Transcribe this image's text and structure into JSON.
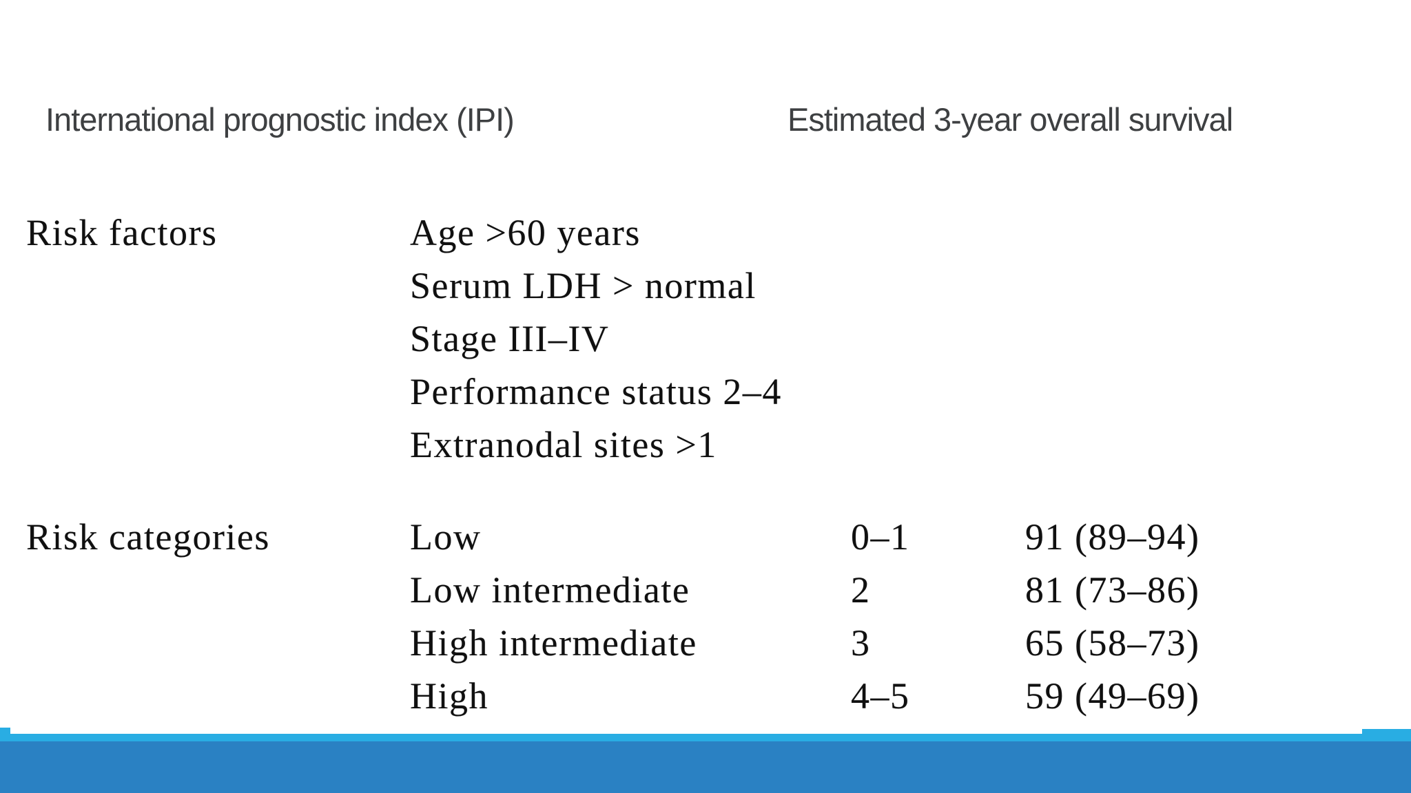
{
  "slide": {
    "heading_left": "International prognostic index (IPI)",
    "heading_right": "Estimated 3-year overall survival",
    "table": {
      "sections": [
        {
          "label": "Risk factors",
          "rows": [
            {
              "name": "Age >60 years"
            },
            {
              "name": "Serum LDH > normal"
            },
            {
              "name": "Stage III–IV"
            },
            {
              "name": "Performance status 2–4"
            },
            {
              "name": "Extranodal sites >1"
            }
          ]
        },
        {
          "label": "Risk categories",
          "rows": [
            {
              "name": "Low",
              "score": "0–1",
              "survival": "91 (89–94)"
            },
            {
              "name": "Low intermediate",
              "score": "2",
              "survival": "81 (73–86)"
            },
            {
              "name": "High intermediate",
              "score": "3",
              "survival": "65 (58–73)"
            },
            {
              "name": "High",
              "score": "4–5",
              "survival": "59 (49–69)"
            }
          ]
        }
      ]
    },
    "colors": {
      "heading_text": "#3e4042",
      "table_text": "#101010",
      "footer_accent_light": "#29ade3",
      "footer_accent_dark": "#2a81c3",
      "background": "#ffffff"
    }
  },
  "chart_data": {
    "type": "table",
    "title": "International prognostic index (IPI)",
    "right_header": "Estimated 3-year overall survival",
    "sections": [
      {
        "label": "Risk factors",
        "rows": [
          [
            "Age >60 years"
          ],
          [
            "Serum LDH > normal"
          ],
          [
            "Stage III–IV"
          ],
          [
            "Performance status 2–4"
          ],
          [
            "Extranodal sites >1"
          ]
        ]
      },
      {
        "label": "Risk categories",
        "rows": [
          [
            "Low",
            "0–1",
            "91 (89–94)"
          ],
          [
            "Low intermediate",
            "2",
            "81 (73–86)"
          ],
          [
            "High intermediate",
            "3",
            "65 (58–73)"
          ],
          [
            "High",
            "4–5",
            "59 (49–69)"
          ]
        ]
      }
    ]
  }
}
